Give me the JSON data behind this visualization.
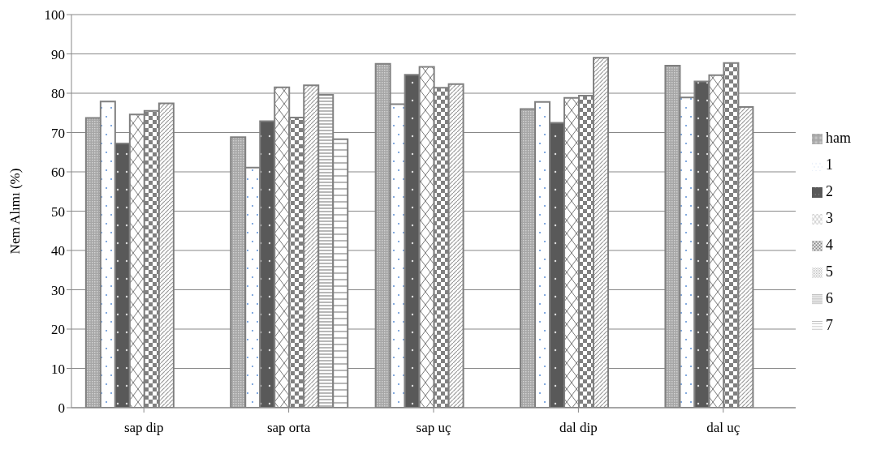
{
  "chart_data": {
    "type": "bar",
    "ylabel": "Nem Alımı (%)",
    "categories": [
      "sap dip",
      "sap orta",
      "sap uç",
      "dal dip",
      "dal uç"
    ],
    "series": [
      {
        "name": "ham",
        "color": "#808080",
        "values": [
          73.7,
          68.8,
          87.5,
          76.0,
          87.0
        ]
      },
      {
        "name": "1",
        "color": "#808080",
        "values": [
          77.9,
          61.1,
          77.2,
          77.8,
          78.9
        ]
      },
      {
        "name": "2",
        "color": "#808080",
        "values": [
          67.2,
          72.9,
          84.7,
          72.5,
          83.0
        ]
      },
      {
        "name": "3",
        "color": "#808080",
        "values": [
          74.6,
          81.5,
          86.7,
          78.8,
          84.6
        ]
      },
      {
        "name": "4",
        "color": "#808080",
        "values": [
          75.5,
          73.8,
          81.4,
          79.4,
          87.7
        ]
      },
      {
        "name": "5",
        "color": "#808080",
        "values": [
          77.4,
          82.0,
          82.3,
          89.0,
          76.5
        ]
      },
      {
        "name": "6",
        "color": "#808080",
        "values": [
          null,
          79.6,
          null,
          null,
          null
        ]
      },
      {
        "name": "7",
        "color": "#808080",
        "values": [
          null,
          68.3,
          null,
          null,
          null
        ]
      }
    ],
    "ylim": [
      0,
      100
    ],
    "yticks": [
      0,
      10,
      20,
      30,
      40,
      50,
      60,
      70,
      80,
      90,
      100
    ],
    "grid": "y",
    "legend": "right"
  }
}
